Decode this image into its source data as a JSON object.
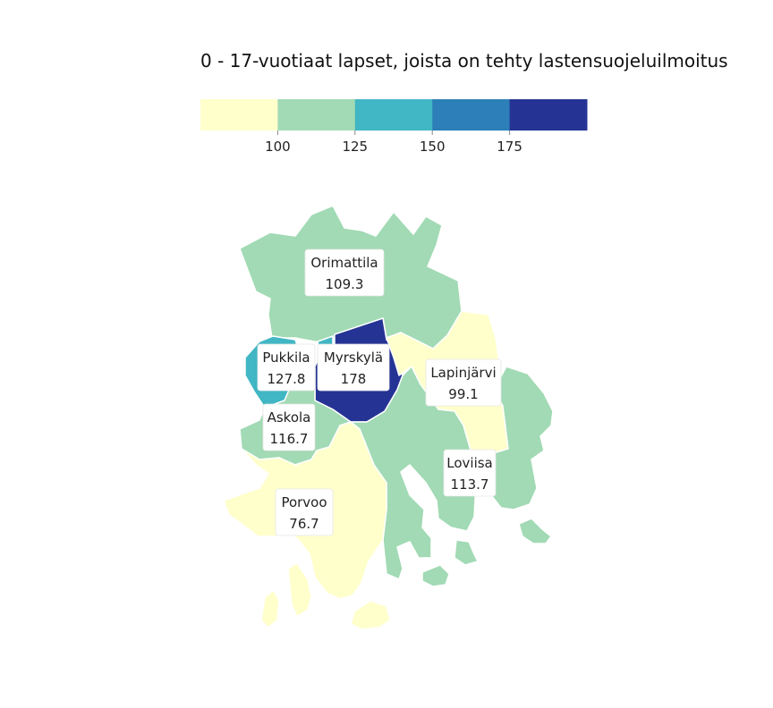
{
  "title": "0 - 17-vuotiaat lapset, joista on tehty lastensuojeluilmoitus",
  "legend": {
    "colors": [
      "#ffffcc",
      "#a1dab4",
      "#41b6c4",
      "#2c7fb8",
      "#253494"
    ],
    "ticks": [
      "100",
      "125",
      "150",
      "175"
    ]
  },
  "regions": [
    {
      "name": "Orimattila",
      "value": "109.3",
      "color": "#a1dab4"
    },
    {
      "name": "Pukkila",
      "value": "127.8",
      "color": "#41b6c4"
    },
    {
      "name": "Myrskylä",
      "value": "178",
      "color": "#253494"
    },
    {
      "name": "Lapinjärvi",
      "value": "99.1",
      "color": "#ffffcc"
    },
    {
      "name": "Askola",
      "value": "116.7",
      "color": "#a1dab4"
    },
    {
      "name": "Loviisa",
      "value": "113.7",
      "color": "#a1dab4"
    },
    {
      "name": "Porvoo",
      "value": "76.7",
      "color": "#ffffcc"
    }
  ]
}
